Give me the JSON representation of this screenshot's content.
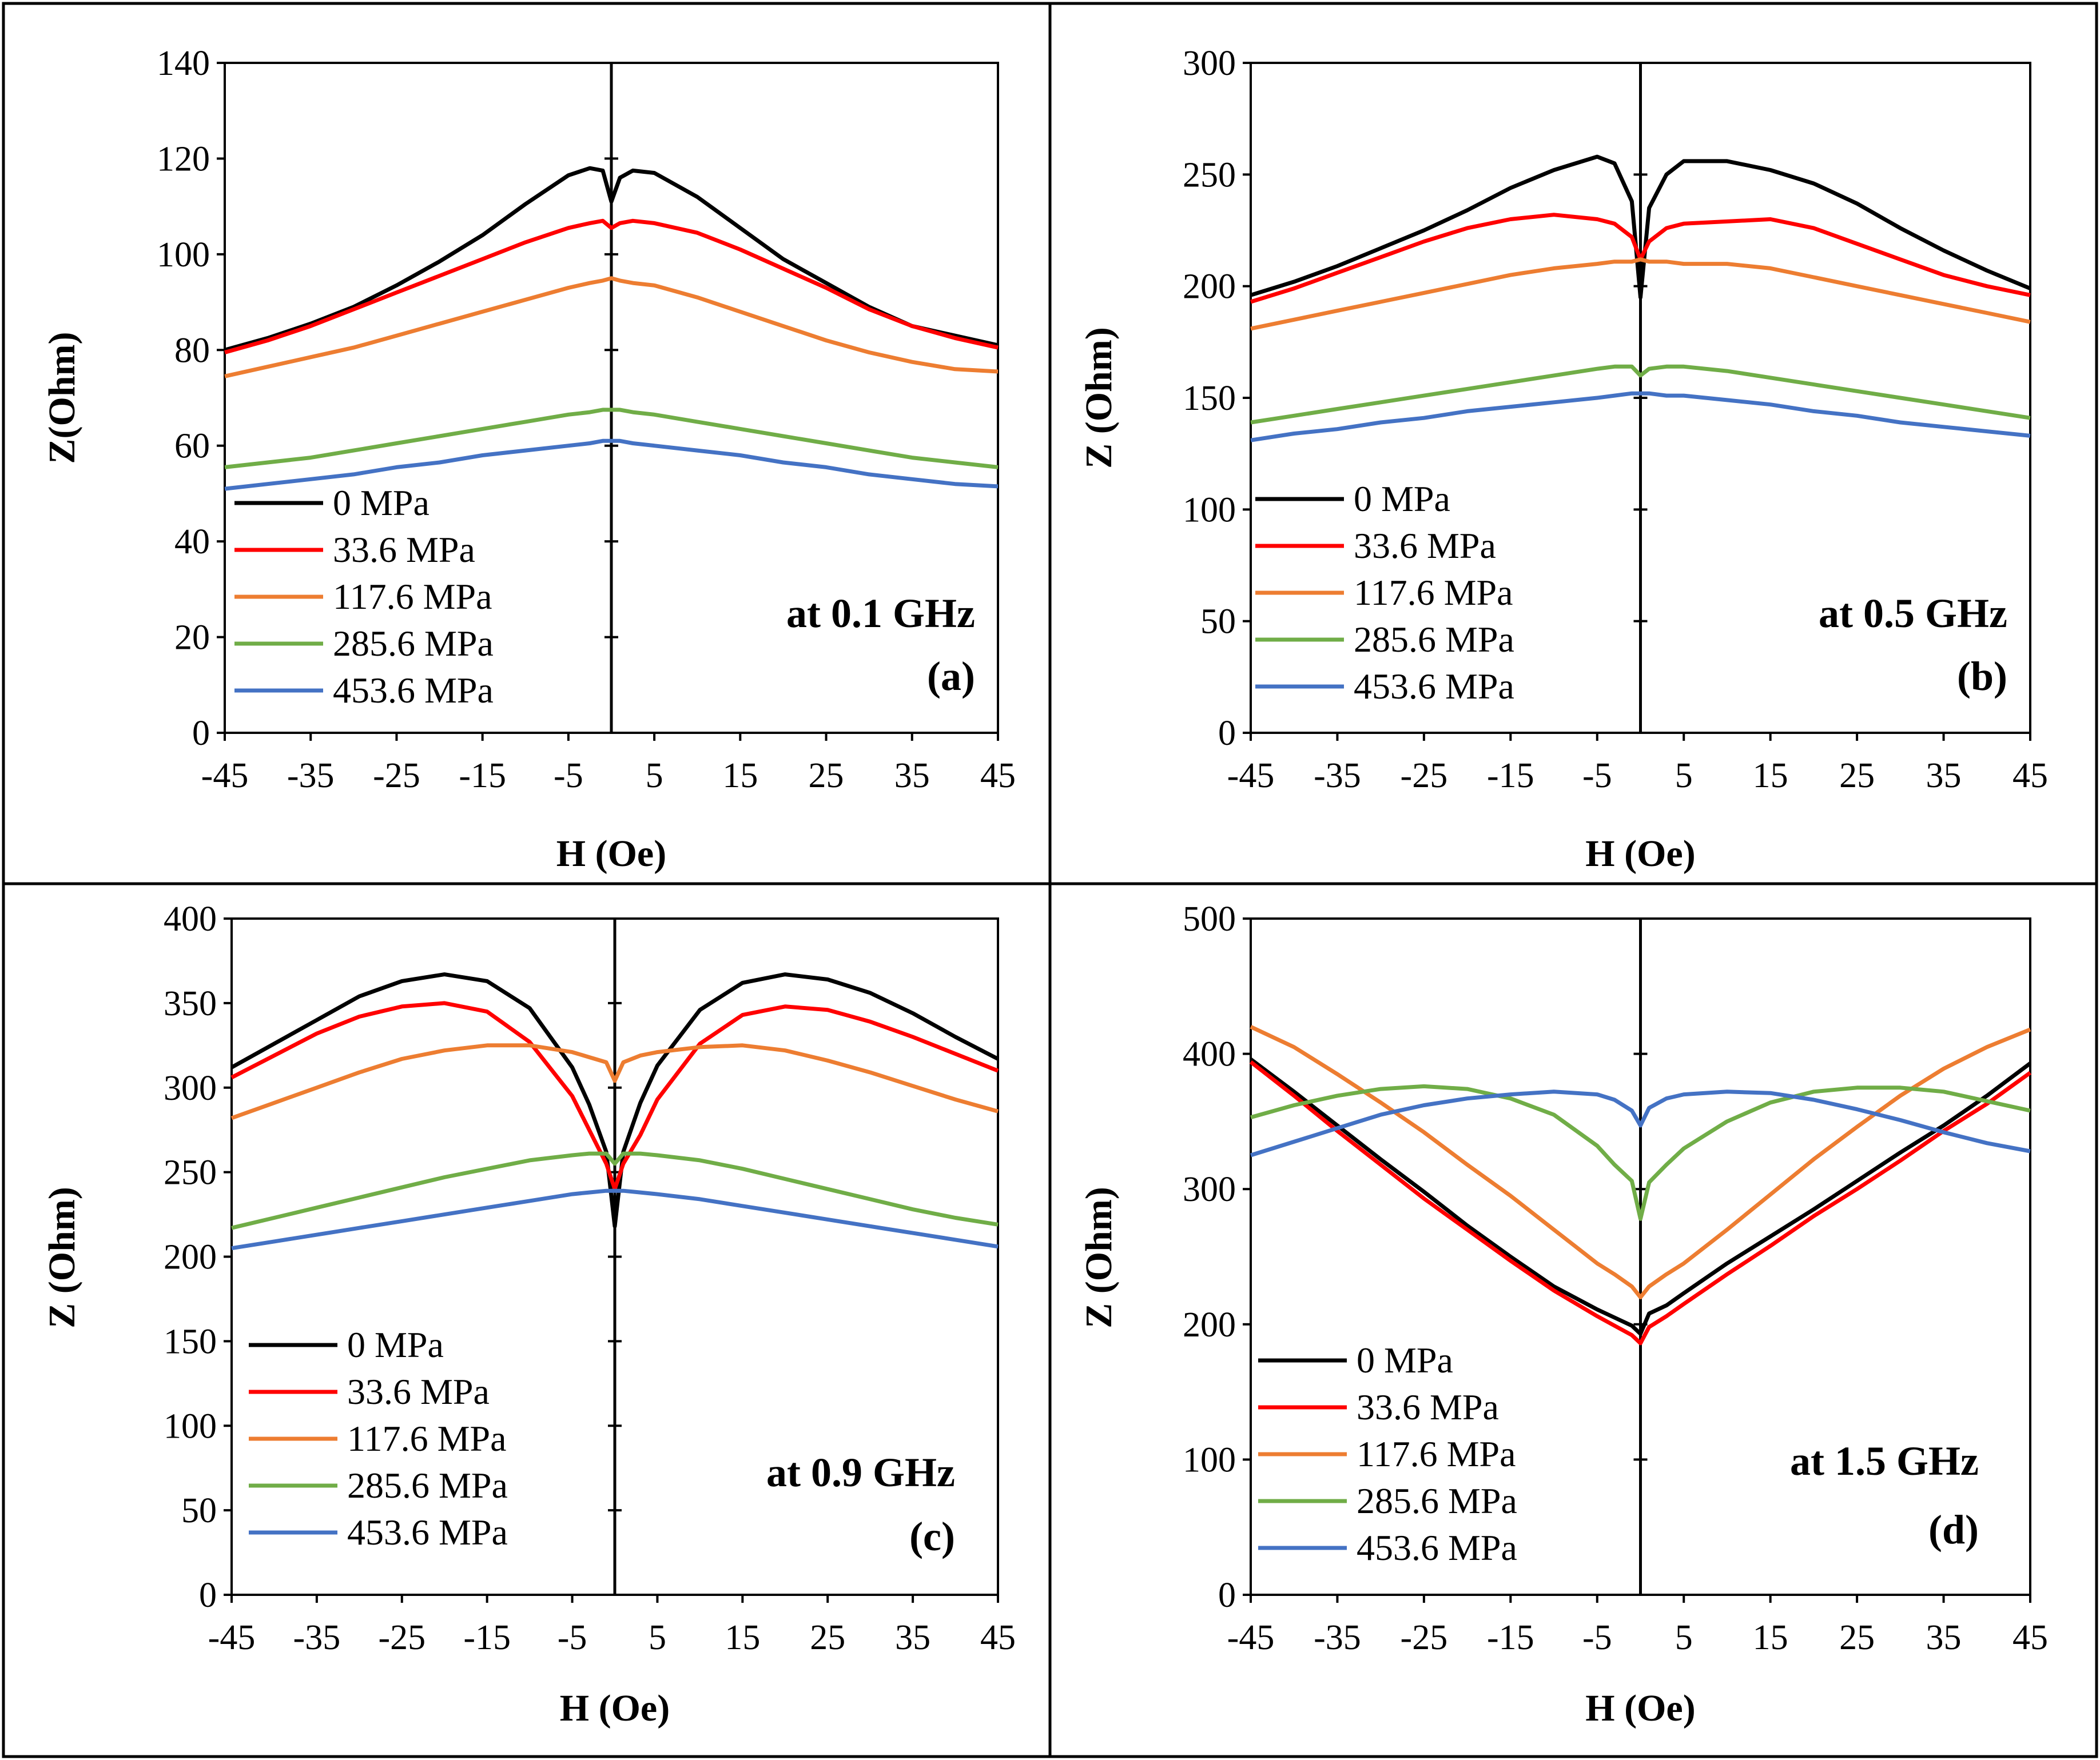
{
  "colors": {
    "0 MPa": "#000000",
    "33.6 MPa": "#ff0000",
    "117.6 MPa": "#ed7d31",
    "285.6 MPa": "#70ad47",
    "453.6 MPa": "#4472c4"
  },
  "chart_data": [
    {
      "type": "line",
      "panel": "(a)",
      "annotation": "at 0.1 GHz",
      "xlabel": "H (Oe)",
      "ylabel": "Z(Ohm)",
      "xlim": [
        -45,
        45
      ],
      "ylim": [
        0,
        140
      ],
      "xticks": [
        -45,
        -35,
        -25,
        -15,
        -5,
        5,
        15,
        25,
        35,
        45
      ],
      "yticks": [
        0,
        20,
        40,
        60,
        80,
        100,
        120,
        140
      ],
      "x": [
        -45,
        -40,
        -35,
        -30,
        -25,
        -20,
        -15,
        -10,
        -5,
        -2.5,
        -1,
        0,
        1,
        2.5,
        5,
        10,
        15,
        20,
        25,
        30,
        35,
        40,
        45
      ],
      "series": [
        {
          "name": "0 MPa",
          "values": [
            80,
            82.5,
            85.5,
            89,
            93.5,
            98.5,
            104,
            110.5,
            116.5,
            118,
            117.5,
            111,
            116,
            117.5,
            117,
            112,
            105.5,
            99,
            94,
            89,
            85,
            83,
            81
          ]
        },
        {
          "name": "33.6 MPa",
          "values": [
            79.5,
            82,
            85,
            88.5,
            92,
            95.5,
            99,
            102.5,
            105.5,
            106.5,
            107,
            105.5,
            106.5,
            107,
            106.5,
            104.5,
            101,
            97,
            93,
            88.5,
            85,
            82.5,
            80.5
          ]
        },
        {
          "name": "117.6 MPa",
          "values": [
            74.5,
            76.5,
            78.5,
            80.5,
            83,
            85.5,
            88,
            90.5,
            93,
            94,
            94.5,
            95,
            94.5,
            94,
            93.5,
            91,
            88,
            85,
            82,
            79.5,
            77.5,
            76,
            75.5
          ]
        },
        {
          "name": "285.6 MPa",
          "values": [
            55.5,
            56.5,
            57.5,
            59,
            60.5,
            62,
            63.5,
            65,
            66.5,
            67,
            67.5,
            67.5,
            67.5,
            67,
            66.5,
            65,
            63.5,
            62,
            60.5,
            59,
            57.5,
            56.5,
            55.5
          ]
        },
        {
          "name": "453.6 MPa",
          "values": [
            51,
            52,
            53,
            54,
            55.5,
            56.5,
            58,
            59,
            60,
            60.5,
            61,
            61,
            61,
            60.5,
            60,
            59,
            58,
            56.5,
            55.5,
            54,
            53,
            52,
            51.5
          ]
        }
      ]
    },
    {
      "type": "line",
      "panel": "(b)",
      "annotation": "at 0.5 GHz",
      "xlabel": "H (Oe)",
      "ylabel": "Z (Ohm)",
      "xlim": [
        -45,
        45
      ],
      "ylim": [
        0,
        300
      ],
      "xticks": [
        -45,
        -35,
        -25,
        -15,
        -5,
        5,
        15,
        25,
        35,
        45
      ],
      "yticks": [
        0,
        50,
        100,
        150,
        200,
        250,
        300
      ],
      "x": [
        -45,
        -40,
        -35,
        -30,
        -25,
        -20,
        -15,
        -10,
        -5,
        -3,
        -1,
        0,
        1,
        3,
        5,
        10,
        15,
        20,
        25,
        30,
        35,
        40,
        45
      ],
      "series": [
        {
          "name": "0 MPa",
          "values": [
            196,
            202,
            209,
            217,
            225,
            234,
            244,
            252,
            258,
            255,
            238,
            195,
            235,
            250,
            256,
            256,
            252,
            246,
            237,
            226,
            216,
            207,
            199
          ]
        },
        {
          "name": "33.6 MPa",
          "values": [
            193,
            199,
            206,
            213,
            220,
            226,
            230,
            232,
            230,
            228,
            222,
            212,
            220,
            226,
            228,
            229,
            230,
            226,
            219,
            212,
            205,
            200,
            196
          ]
        },
        {
          "name": "117.6 MPa",
          "values": [
            181,
            185,
            189,
            193,
            197,
            201,
            205,
            208,
            210,
            211,
            211,
            212,
            211,
            211,
            210,
            210,
            208,
            204,
            200,
            196,
            192,
            188,
            184
          ]
        },
        {
          "name": "285.6 MPa",
          "values": [
            139,
            142,
            145,
            148,
            151,
            154,
            157,
            160,
            163,
            164,
            164,
            160,
            163,
            164,
            164,
            162,
            159,
            156,
            153,
            150,
            147,
            144,
            141
          ]
        },
        {
          "name": "453.6 MPa",
          "values": [
            131,
            134,
            136,
            139,
            141,
            144,
            146,
            148,
            150,
            151,
            152,
            152,
            152,
            151,
            151,
            149,
            147,
            144,
            142,
            139,
            137,
            135,
            133
          ]
        }
      ]
    },
    {
      "type": "line",
      "panel": "(c)",
      "annotation": "at 0.9 GHz",
      "xlabel": "H (Oe)",
      "ylabel": "Z (Ohm)",
      "xlim": [
        -45,
        45
      ],
      "ylim": [
        0,
        400
      ],
      "xticks": [
        -45,
        -35,
        -25,
        -15,
        -5,
        5,
        15,
        25,
        35,
        45
      ],
      "yticks": [
        0,
        50,
        100,
        150,
        200,
        250,
        300,
        350,
        400
      ],
      "x": [
        -45,
        -40,
        -35,
        -30,
        -25,
        -20,
        -15,
        -10,
        -5,
        -3,
        -1,
        0,
        1,
        3,
        5,
        10,
        15,
        20,
        25,
        30,
        35,
        40,
        45
      ],
      "series": [
        {
          "name": "0 MPa",
          "values": [
            312,
            326,
            340,
            354,
            363,
            367,
            363,
            347,
            312,
            290,
            262,
            218,
            262,
            291,
            313,
            346,
            362,
            367,
            364,
            356,
            344,
            330,
            317
          ]
        },
        {
          "name": "33.6 MPa",
          "values": [
            306,
            319,
            332,
            342,
            348,
            350,
            345,
            327,
            295,
            275,
            255,
            240,
            255,
            272,
            293,
            326,
            343,
            348,
            346,
            339,
            330,
            320,
            310
          ]
        },
        {
          "name": "117.6 MPa",
          "values": [
            282,
            291,
            300,
            309,
            317,
            322,
            325,
            325,
            321,
            318,
            315,
            304,
            315,
            319,
            321,
            324,
            325,
            322,
            316,
            309,
            301,
            293,
            286
          ]
        },
        {
          "name": "285.6 MPa",
          "values": [
            217,
            223,
            229,
            235,
            241,
            247,
            252,
            257,
            260,
            261,
            261,
            255,
            261,
            261,
            260,
            257,
            252,
            246,
            240,
            234,
            228,
            223,
            219
          ]
        },
        {
          "name": "453.6 MPa",
          "values": [
            205,
            209,
            213,
            217,
            221,
            225,
            229,
            233,
            237,
            238,
            239,
            239,
            239,
            238,
            237,
            234,
            230,
            226,
            222,
            218,
            214,
            210,
            206
          ]
        }
      ]
    },
    {
      "type": "line",
      "panel": "(d)",
      "annotation": "at 1.5 GHz",
      "xlabel": "H (Oe)",
      "ylabel": "Z (Ohm)",
      "xlim": [
        -45,
        45
      ],
      "ylim": [
        0,
        500
      ],
      "xticks": [
        -45,
        -35,
        -25,
        -15,
        -5,
        5,
        15,
        25,
        35,
        45
      ],
      "yticks": [
        0,
        100,
        200,
        300,
        400,
        500
      ],
      "x": [
        -45,
        -40,
        -35,
        -30,
        -25,
        -20,
        -15,
        -10,
        -5,
        -3,
        -1,
        0,
        1,
        3,
        5,
        10,
        15,
        20,
        25,
        30,
        35,
        40,
        45
      ],
      "series": [
        {
          "name": "0 MPa",
          "values": [
            396,
            372,
            347,
            322,
            298,
            273,
            250,
            228,
            211,
            205,
            199,
            193,
            208,
            214,
            223,
            245,
            265,
            285,
            306,
            327,
            347,
            369,
            393
          ]
        },
        {
          "name": "33.6 MPa",
          "values": [
            394,
            369,
            343,
            318,
            293,
            270,
            247,
            225,
            206,
            199,
            192,
            186,
            198,
            206,
            215,
            237,
            258,
            280,
            300,
            321,
            343,
            363,
            386
          ]
        },
        {
          "name": "117.6 MPa",
          "values": [
            420,
            405,
            385,
            364,
            342,
            318,
            295,
            270,
            245,
            237,
            228,
            220,
            228,
            237,
            245,
            270,
            296,
            322,
            346,
            369,
            389,
            405,
            418
          ]
        },
        {
          "name": "285.6 MPa",
          "values": [
            353,
            362,
            369,
            374,
            376,
            374,
            367,
            355,
            332,
            318,
            306,
            278,
            305,
            318,
            330,
            350,
            364,
            372,
            375,
            375,
            372,
            365,
            358
          ]
        },
        {
          "name": "453.6 MPa",
          "values": [
            325,
            335,
            345,
            355,
            362,
            367,
            370,
            372,
            370,
            366,
            358,
            347,
            360,
            367,
            370,
            372,
            371,
            366,
            359,
            351,
            342,
            334,
            328
          ]
        }
      ]
    }
  ]
}
